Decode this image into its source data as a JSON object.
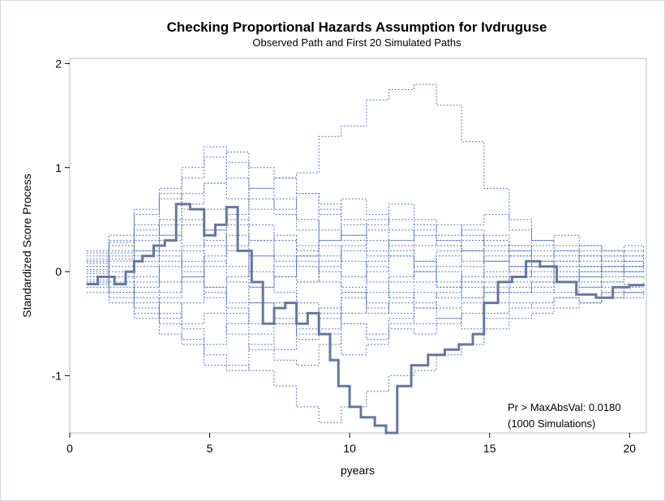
{
  "chart_data": {
    "type": "line",
    "title": "Checking Proportional Hazards Assumption for Ivdruguse",
    "subtitle": "Observed Path and First 20 Simulated Paths",
    "xlabel": "pyears",
    "ylabel": "Standardized Score Process",
    "xlim": [
      0,
      20.6
    ],
    "ylim": [
      -1.55,
      2.05
    ],
    "x_ticks": [
      0,
      5,
      10,
      15,
      20
    ],
    "y_ticks": [
      -1,
      0,
      1,
      2
    ],
    "grid": false,
    "legend": "none",
    "annotation": [
      "Pr > MaxAbsVal: 0.0180",
      "(1000 Simulations)"
    ],
    "colors": {
      "observed": "#6478a0",
      "simulated": "#5a78b4"
    },
    "series": [
      {
        "role": "observed",
        "x": [
          0.6,
          1.0,
          1.6,
          2.0,
          2.3,
          2.6,
          3.0,
          3.4,
          3.8,
          4.3,
          4.8,
          5.2,
          5.6,
          6.0,
          6.5,
          6.9,
          7.3,
          7.7,
          8.1,
          8.5,
          8.9,
          9.3,
          9.6,
          10.0,
          10.4,
          10.9,
          11.3,
          11.7,
          12.2,
          12.8,
          13.4,
          13.9,
          14.4,
          14.8,
          15.3,
          15.8,
          16.3,
          16.8,
          17.4,
          18.1,
          18.8,
          19.4,
          20.0,
          20.5
        ],
        "y": [
          -0.12,
          -0.05,
          -0.12,
          0.0,
          0.1,
          0.15,
          0.25,
          0.3,
          0.65,
          0.6,
          0.35,
          0.45,
          0.62,
          0.2,
          -0.1,
          -0.5,
          -0.35,
          -0.3,
          -0.5,
          -0.4,
          -0.6,
          -0.85,
          -1.1,
          -1.3,
          -1.4,
          -1.48,
          -1.55,
          -1.1,
          -0.9,
          -0.8,
          -0.75,
          -0.7,
          -0.6,
          -0.3,
          -0.1,
          -0.05,
          0.1,
          0.05,
          -0.1,
          -0.22,
          -0.25,
          -0.15,
          -0.13,
          -0.14
        ]
      },
      {
        "role": "simulated",
        "x": [
          0.6,
          1.4,
          2.3,
          3.2,
          4.0,
          4.8,
          5.6,
          6.4,
          7.3,
          8.1,
          8.9,
          9.7,
          10.6,
          11.4,
          12.3,
          13.1,
          14.0,
          14.8,
          15.7,
          16.5,
          17.3,
          18.2,
          19.0,
          19.8,
          20.5
        ],
        "y": [
          0.1,
          0.28,
          0.4,
          0.7,
          0.9,
          1.1,
          1.15,
          1.0,
          0.9,
          0.95,
          1.3,
          1.4,
          1.65,
          1.75,
          1.8,
          1.6,
          1.25,
          0.8,
          0.5,
          0.3,
          0.25,
          0.2,
          0.15,
          0.1,
          0.05
        ]
      },
      {
        "role": "simulated",
        "x": [
          0.6,
          1.4,
          2.3,
          3.2,
          4.0,
          4.8,
          5.6,
          6.4,
          7.3,
          8.1,
          8.9,
          9.7,
          10.6,
          11.4,
          12.3,
          13.1,
          14.0,
          14.8,
          15.7,
          16.5,
          17.3,
          18.2,
          19.0,
          19.8,
          20.5
        ],
        "y": [
          -0.05,
          -0.2,
          -0.4,
          -0.5,
          -0.65,
          -0.8,
          -0.9,
          -0.95,
          -1.1,
          -1.3,
          -1.45,
          -1.3,
          -1.15,
          -1.0,
          -0.95,
          -0.8,
          -0.7,
          -0.55,
          -0.45,
          -0.4,
          -0.35,
          -0.3,
          -0.25,
          -0.2,
          -0.2
        ]
      },
      {
        "role": "simulated",
        "x": [
          0.6,
          1.4,
          2.3,
          3.2,
          4.0,
          4.8,
          5.6,
          6.4,
          7.3,
          8.1,
          8.9,
          9.7,
          10.6,
          11.4,
          12.3,
          13.1,
          14.0,
          14.8,
          15.7,
          16.5,
          17.3,
          18.2,
          19.0,
          19.8,
          20.5
        ],
        "y": [
          0.2,
          0.35,
          0.6,
          0.8,
          1.0,
          1.2,
          0.9,
          0.6,
          0.7,
          0.5,
          0.3,
          0.35,
          0.2,
          0.3,
          0.4,
          0.45,
          0.35,
          0.3,
          0.2,
          0.25,
          0.2,
          0.15,
          0.1,
          0.15,
          0.1
        ]
      },
      {
        "role": "simulated",
        "x": [
          0.6,
          1.4,
          2.3,
          3.2,
          4.0,
          4.8,
          5.6,
          6.4,
          7.3,
          8.1,
          8.9,
          9.7,
          10.6,
          11.4,
          12.3,
          13.1,
          14.0,
          14.8,
          15.7,
          16.5,
          17.3,
          18.2,
          19.0,
          19.8,
          20.5
        ],
        "y": [
          -0.1,
          -0.25,
          -0.35,
          -0.6,
          -0.7,
          -0.9,
          -0.95,
          -0.7,
          -0.5,
          -0.3,
          -0.6,
          -0.8,
          -0.7,
          -0.55,
          -0.6,
          -0.5,
          -0.4,
          -0.45,
          -0.35,
          -0.3,
          -0.25,
          -0.3,
          -0.2,
          -0.25,
          -0.2
        ]
      },
      {
        "role": "simulated",
        "x": [
          0.6,
          1.4,
          2.3,
          3.2,
          4.0,
          4.8,
          5.6,
          6.4,
          7.3,
          8.1,
          8.9,
          9.7,
          10.6,
          11.4,
          12.3,
          13.1,
          14.0,
          14.8,
          15.7,
          16.5,
          17.3,
          18.2,
          19.0,
          19.8,
          20.5
        ],
        "y": [
          0.05,
          0.15,
          0.3,
          0.5,
          0.75,
          0.85,
          0.7,
          0.8,
          0.9,
          0.75,
          0.65,
          0.5,
          0.45,
          0.5,
          0.35,
          0.25,
          0.2,
          0.1,
          0.15,
          0.05,
          0.1,
          0.05,
          0.0,
          0.05,
          0.0
        ]
      },
      {
        "role": "simulated",
        "x": [
          0.6,
          1.4,
          2.3,
          3.2,
          4.0,
          4.8,
          5.6,
          6.4,
          7.3,
          8.1,
          8.9,
          9.7,
          10.6,
          11.4,
          12.3,
          13.1,
          14.0,
          14.8,
          15.7,
          16.5,
          17.3,
          18.2,
          19.0,
          19.8,
          20.5
        ],
        "y": [
          -0.15,
          -0.05,
          -0.2,
          -0.3,
          -0.5,
          -0.4,
          -0.6,
          -0.75,
          -0.85,
          -0.9,
          -0.7,
          -0.5,
          -0.6,
          -0.45,
          -0.3,
          -0.35,
          -0.25,
          -0.15,
          -0.2,
          -0.1,
          -0.05,
          -0.1,
          -0.15,
          -0.2,
          -0.22
        ]
      },
      {
        "role": "simulated",
        "x": [
          0.6,
          1.4,
          2.3,
          3.2,
          4.0,
          4.8,
          5.6,
          6.4,
          7.3,
          8.1,
          8.9,
          9.7,
          10.6,
          11.4,
          12.3,
          13.1,
          14.0,
          14.8,
          15.7,
          16.5,
          17.3,
          18.2,
          19.0,
          19.8,
          20.5
        ],
        "y": [
          0.15,
          0.25,
          0.15,
          0.35,
          0.5,
          0.6,
          0.45,
          0.3,
          0.15,
          0.05,
          -0.1,
          -0.2,
          -0.35,
          -0.3,
          -0.2,
          -0.25,
          -0.1,
          0.0,
          0.05,
          0.1,
          0.0,
          -0.05,
          0.05,
          0.0,
          0.02
        ]
      },
      {
        "role": "simulated",
        "x": [
          0.6,
          1.4,
          2.3,
          3.2,
          4.0,
          4.8,
          5.6,
          6.4,
          7.3,
          8.1,
          8.9,
          9.7,
          10.6,
          11.4,
          12.3,
          13.1,
          14.0,
          14.8,
          15.7,
          16.5,
          17.3,
          18.2,
          19.0,
          19.8,
          20.5
        ],
        "y": [
          -0.05,
          0.1,
          0.05,
          -0.1,
          0.1,
          0.3,
          0.5,
          0.7,
          0.55,
          0.4,
          0.6,
          0.7,
          0.55,
          0.4,
          0.25,
          0.3,
          0.4,
          0.25,
          0.15,
          0.2,
          0.1,
          0.15,
          0.05,
          0.1,
          0.05
        ]
      },
      {
        "role": "simulated",
        "x": [
          0.6,
          1.4,
          2.3,
          3.2,
          4.0,
          4.8,
          5.6,
          6.4,
          7.3,
          8.1,
          8.9,
          9.7,
          10.6,
          11.4,
          12.3,
          13.1,
          14.0,
          14.8,
          15.7,
          16.5,
          17.3,
          18.2,
          19.0,
          19.8,
          20.5
        ],
        "y": [
          0.0,
          -0.15,
          -0.3,
          -0.45,
          -0.3,
          -0.15,
          -0.35,
          -0.5,
          -0.3,
          -0.1,
          0.1,
          0.2,
          0.05,
          -0.1,
          0.0,
          0.15,
          0.1,
          -0.05,
          -0.1,
          -0.15,
          -0.1,
          -0.05,
          -0.1,
          -0.05,
          -0.08
        ]
      },
      {
        "role": "simulated",
        "x": [
          0.6,
          1.4,
          2.3,
          3.2,
          4.0,
          4.8,
          5.6,
          6.4,
          7.3,
          8.1,
          8.9,
          9.7,
          10.6,
          11.4,
          12.3,
          13.1,
          14.0,
          14.8,
          15.7,
          16.5,
          17.3,
          18.2,
          19.0,
          19.8,
          20.5
        ],
        "y": [
          0.1,
          0.2,
          0.45,
          0.35,
          0.2,
          0.05,
          0.25,
          0.45,
          0.3,
          0.15,
          0.0,
          -0.15,
          -0.3,
          -0.4,
          -0.5,
          -0.45,
          -0.3,
          -0.2,
          -0.15,
          -0.2,
          -0.1,
          -0.15,
          -0.1,
          -0.12,
          -0.1
        ]
      },
      {
        "role": "simulated",
        "x": [
          0.6,
          1.4,
          2.3,
          3.2,
          4.0,
          4.8,
          5.6,
          6.4,
          7.3,
          8.1,
          8.9,
          9.7,
          10.6,
          11.4,
          12.3,
          13.1,
          14.0,
          14.8,
          15.7,
          16.5,
          17.3,
          18.2,
          19.0,
          19.8,
          20.5
        ],
        "y": [
          -0.1,
          0.0,
          0.2,
          0.1,
          -0.1,
          -0.25,
          -0.05,
          0.15,
          0.35,
          0.2,
          0.4,
          0.3,
          0.15,
          0.3,
          0.45,
          0.3,
          0.2,
          0.35,
          0.25,
          0.3,
          0.2,
          0.25,
          0.2,
          0.15,
          0.1
        ]
      },
      {
        "role": "simulated",
        "x": [
          0.6,
          1.4,
          2.3,
          3.2,
          4.0,
          4.8,
          5.6,
          6.4,
          7.3,
          8.1,
          8.9,
          9.7,
          10.6,
          11.4,
          12.3,
          13.1,
          14.0,
          14.8,
          15.7,
          16.5,
          17.3,
          18.2,
          19.0,
          19.8,
          20.5
        ],
        "y": [
          0.05,
          -0.1,
          -0.15,
          0.05,
          0.25,
          0.4,
          0.2,
          0.0,
          -0.2,
          -0.4,
          -0.55,
          -0.4,
          -0.2,
          -0.05,
          0.1,
          0.0,
          -0.15,
          -0.3,
          -0.2,
          -0.1,
          -0.2,
          -0.15,
          -0.25,
          -0.2,
          -0.18
        ]
      },
      {
        "role": "simulated",
        "x": [
          0.6,
          1.4,
          2.3,
          3.2,
          4.0,
          4.8,
          5.6,
          6.4,
          7.3,
          8.1,
          8.9,
          9.7,
          10.6,
          11.4,
          12.3,
          13.1,
          14.0,
          14.8,
          15.7,
          16.5,
          17.3,
          18.2,
          19.0,
          19.8,
          20.5
        ],
        "y": [
          -0.2,
          -0.3,
          -0.1,
          0.15,
          0.05,
          -0.15,
          -0.3,
          -0.15,
          0.05,
          0.25,
          0.15,
          -0.05,
          0.1,
          0.2,
          0.05,
          -0.1,
          0.05,
          0.15,
          0.05,
          0.1,
          0.15,
          0.05,
          0.1,
          0.05,
          0.05
        ]
      },
      {
        "role": "simulated",
        "x": [
          0.6,
          1.4,
          2.3,
          3.2,
          4.0,
          4.8,
          5.6,
          6.4,
          7.3,
          8.1,
          8.9,
          9.7,
          10.6,
          11.4,
          12.3,
          13.1,
          14.0,
          14.8,
          15.7,
          16.5,
          17.3,
          18.2,
          19.0,
          19.8,
          20.5
        ],
        "y": [
          0.12,
          0.3,
          0.55,
          0.75,
          0.6,
          0.4,
          0.55,
          0.3,
          0.1,
          -0.1,
          0.05,
          0.25,
          0.4,
          0.25,
          0.1,
          0.2,
          0.3,
          0.2,
          0.25,
          0.15,
          0.2,
          0.1,
          0.15,
          0.2,
          0.15
        ]
      },
      {
        "role": "simulated",
        "x": [
          0.6,
          1.4,
          2.3,
          3.2,
          4.0,
          4.8,
          5.6,
          6.4,
          7.3,
          8.1,
          8.9,
          9.7,
          10.6,
          11.4,
          12.3,
          13.1,
          14.0,
          14.8,
          15.7,
          16.5,
          17.3,
          18.2,
          19.0,
          19.8,
          20.5
        ],
        "y": [
          -0.08,
          -0.2,
          -0.45,
          -0.25,
          -0.05,
          0.1,
          -0.1,
          -0.3,
          -0.5,
          -0.65,
          -0.45,
          -0.25,
          -0.4,
          -0.2,
          -0.35,
          -0.2,
          -0.1,
          -0.2,
          -0.05,
          0.0,
          -0.1,
          0.0,
          -0.05,
          0.0,
          -0.02
        ]
      },
      {
        "role": "simulated",
        "x": [
          0.6,
          1.4,
          2.3,
          3.2,
          4.0,
          4.8,
          5.6,
          6.4,
          7.3,
          8.1,
          8.9,
          9.7,
          10.6,
          11.4,
          12.3,
          13.1,
          14.0,
          14.8,
          15.7,
          16.5,
          17.3,
          18.2,
          19.0,
          19.8,
          20.5
        ],
        "y": [
          0.02,
          0.12,
          -0.05,
          -0.2,
          -0.05,
          0.15,
          0.35,
          0.15,
          -0.05,
          0.1,
          0.25,
          0.1,
          -0.1,
          -0.25,
          -0.1,
          0.05,
          0.2,
          0.1,
          0.0,
          0.05,
          -0.05,
          0.05,
          0.0,
          -0.05,
          -0.03
        ]
      },
      {
        "role": "simulated",
        "x": [
          0.6,
          1.4,
          2.3,
          3.2,
          4.0,
          4.8,
          5.6,
          6.4,
          7.3,
          8.1,
          8.9,
          9.7,
          10.6,
          11.4,
          12.3,
          13.1,
          14.0,
          14.8,
          15.7,
          16.5,
          17.3,
          18.2,
          19.0,
          19.8,
          20.5
        ],
        "y": [
          -0.12,
          -0.05,
          0.1,
          0.3,
          0.45,
          0.25,
          0.05,
          -0.15,
          -0.05,
          0.15,
          0.3,
          0.45,
          0.3,
          0.15,
          0.0,
          -0.15,
          -0.25,
          -0.1,
          0.05,
          -0.05,
          0.05,
          -0.05,
          0.0,
          0.05,
          0.03
        ]
      },
      {
        "role": "simulated",
        "x": [
          0.6,
          1.4,
          2.3,
          3.2,
          4.0,
          4.8,
          5.6,
          6.4,
          7.3,
          8.1,
          8.9,
          9.7,
          10.6,
          11.4,
          12.3,
          13.1,
          14.0,
          14.8,
          15.7,
          16.5,
          17.3,
          18.2,
          19.0,
          19.8,
          20.5
        ],
        "y": [
          0.08,
          -0.05,
          -0.25,
          -0.4,
          -0.55,
          -0.7,
          -0.5,
          -0.3,
          -0.45,
          -0.6,
          -0.4,
          -0.2,
          0.0,
          0.15,
          0.0,
          -0.15,
          -0.05,
          0.1,
          0.2,
          0.1,
          0.05,
          0.0,
          0.05,
          0.0,
          0.0
        ]
      },
      {
        "role": "simulated",
        "x": [
          0.6,
          1.4,
          2.3,
          3.2,
          4.0,
          4.8,
          5.6,
          6.4,
          7.3,
          8.1,
          8.9,
          9.7,
          10.6,
          11.4,
          12.3,
          13.1,
          14.0,
          14.8,
          15.7,
          16.5,
          17.3,
          18.2,
          19.0,
          19.8,
          20.5
        ],
        "y": [
          -0.02,
          0.18,
          0.35,
          0.2,
          0.0,
          -0.2,
          -0.4,
          -0.6,
          -0.75,
          -0.55,
          -0.35,
          -0.5,
          -0.65,
          -0.5,
          -0.35,
          -0.45,
          -0.55,
          -0.4,
          -0.3,
          -0.35,
          -0.25,
          -0.3,
          -0.2,
          -0.15,
          -0.15
        ]
      },
      {
        "role": "simulated",
        "x": [
          0.6,
          1.4,
          2.3,
          3.2,
          4.0,
          4.8,
          5.6,
          6.4,
          7.3,
          8.1,
          8.9,
          9.7,
          10.6,
          11.4,
          12.3,
          13.1,
          14.0,
          14.8,
          15.7,
          16.5,
          17.3,
          18.2,
          19.0,
          19.8,
          20.5
        ],
        "y": [
          0.18,
          0.05,
          0.2,
          0.45,
          0.65,
          0.85,
          1.05,
          0.8,
          0.6,
          0.75,
          0.55,
          0.35,
          0.5,
          0.65,
          0.5,
          0.35,
          0.45,
          0.55,
          0.4,
          0.3,
          0.35,
          0.25,
          0.2,
          0.25,
          0.2
        ]
      }
    ]
  }
}
